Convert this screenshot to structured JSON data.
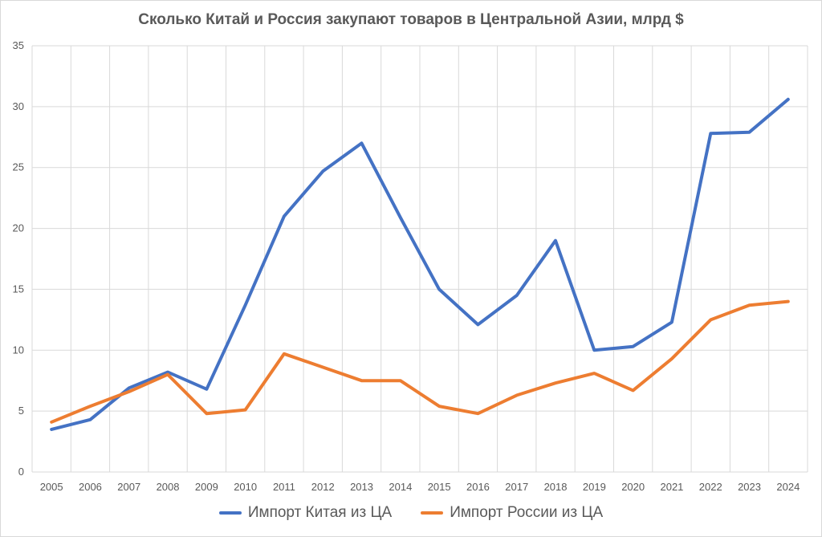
{
  "chart_data": {
    "type": "line",
    "title": "Сколько  Китай и Россия закупают товаров в Центральной Азии, млрд $",
    "categories": [
      "2005",
      "2006",
      "2007",
      "2008",
      "2009",
      "2010",
      "2011",
      "2012",
      "2013",
      "2014",
      "2015",
      "2016",
      "2017",
      "2018",
      "2019",
      "2020",
      "2021",
      "2022",
      "2023",
      "2024"
    ],
    "ylim": [
      0,
      35
    ],
    "yticks": [
      0,
      5,
      10,
      15,
      20,
      25,
      30,
      35
    ],
    "grid": true,
    "legend": "bottom",
    "series": [
      {
        "name": "Импорт Китая из ЦА",
        "color": "#4472C4",
        "values": [
          3.5,
          4.3,
          6.9,
          8.2,
          6.8,
          13.7,
          21.0,
          24.7,
          27.0,
          20.9,
          15.0,
          12.1,
          14.5,
          19.0,
          10.0,
          10.3,
          12.3,
          27.8,
          27.9,
          30.6
        ]
      },
      {
        "name": "Импорт России из ЦА",
        "color": "#ED7D31",
        "values": [
          4.1,
          5.4,
          6.6,
          8.0,
          4.8,
          5.1,
          9.7,
          8.6,
          7.5,
          7.5,
          5.4,
          4.8,
          6.3,
          7.3,
          8.1,
          6.7,
          9.3,
          12.5,
          13.7,
          14.0
        ]
      }
    ]
  }
}
